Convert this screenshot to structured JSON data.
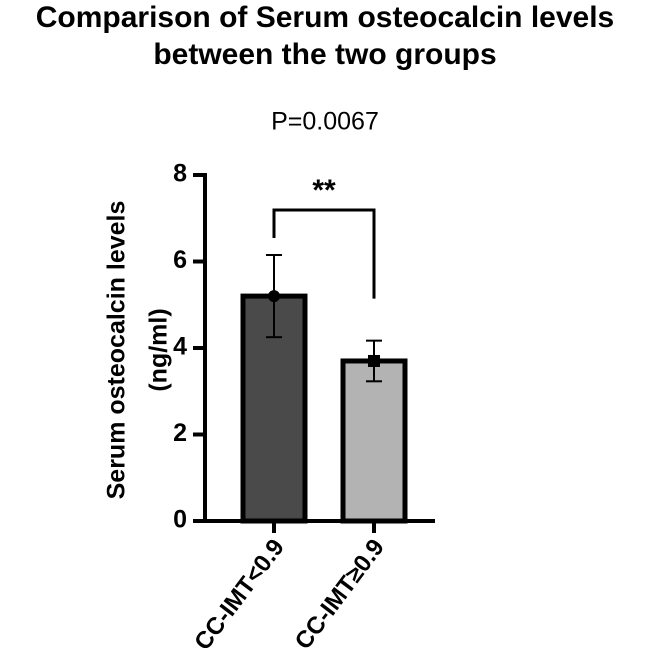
{
  "chart_data": {
    "type": "bar",
    "title": [
      "Comparison of Serum osteocalcin levels",
      "between the two groups"
    ],
    "subtitle": "P=0.0067",
    "annotation": "**",
    "y_label": [
      "Serum osteocalcin levels",
      "(ng/ml)"
    ],
    "categories": [
      "CC-IMT<0.9",
      "CC-IMT≥0.9"
    ],
    "values": [
      5.2,
      3.7
    ],
    "errors": [
      0.95,
      0.47
    ],
    "colors": [
      "#4a4a4a",
      "#b3b3b3"
    ],
    "ylim": [
      0,
      8
    ],
    "yticks": [
      0,
      2,
      4,
      6,
      8
    ]
  }
}
